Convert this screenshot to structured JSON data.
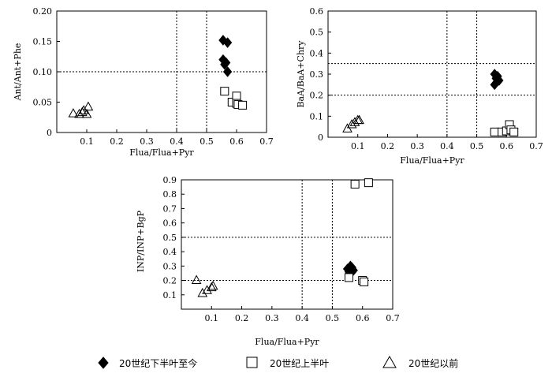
{
  "chart_data": [
    {
      "type": "scatter",
      "xlabel": "Flua/Flua+Pyr",
      "ylabel": "Ant/Ant+Phe",
      "xlim": [
        0,
        0.7
      ],
      "ylim": [
        0,
        0.2
      ],
      "xticks": [
        "0.1",
        "0.2",
        "0.3",
        "0.4",
        "0.5",
        "0.6",
        "0.7"
      ],
      "yticks": [
        "0.20",
        "0.15",
        "0.10",
        "0.05",
        "0"
      ],
      "vlines": [
        0.4,
        0.5
      ],
      "hlines": [
        0.1
      ],
      "series": [
        {
          "name": "20世纪下半叶至今",
          "marker": "diamond-filled",
          "x": [
            0.555,
            0.57,
            0.555,
            0.565,
            0.56,
            0.57
          ],
          "y": [
            0.152,
            0.148,
            0.12,
            0.115,
            0.112,
            0.1
          ]
        },
        {
          "name": "20世纪上半叶",
          "marker": "square-open",
          "x": [
            0.56,
            0.585,
            0.6,
            0.6,
            0.605,
            0.62
          ],
          "y": [
            0.068,
            0.05,
            0.06,
            0.048,
            0.046,
            0.045
          ]
        },
        {
          "name": "20世纪以前",
          "marker": "triangle-open",
          "x": [
            0.055,
            0.075,
            0.085,
            0.09,
            0.1,
            0.105
          ],
          "y": [
            0.031,
            0.03,
            0.033,
            0.036,
            0.03,
            0.042
          ]
        }
      ]
    },
    {
      "type": "scatter",
      "xlabel": "Flua/Flua+Pyr",
      "ylabel": "BaA/BaA+Chry",
      "xlim": [
        0,
        0.7
      ],
      "ylim": [
        0,
        0.6
      ],
      "xticks": [
        "0.1",
        "0.2",
        "0.3",
        "0.4",
        "0.5",
        "0.6",
        "0.7"
      ],
      "yticks": [
        "0.6",
        "0.5",
        "0.4",
        "0.3",
        "0.2",
        "0.1",
        "0"
      ],
      "vlines": [
        0.4,
        0.5
      ],
      "hlines": [
        0.35,
        0.2
      ],
      "series": [
        {
          "name": "20世纪下半叶至今",
          "marker": "diamond-filled",
          "x": [
            0.56,
            0.57,
            0.565,
            0.575,
            0.56
          ],
          "y": [
            0.3,
            0.29,
            0.28,
            0.27,
            0.25
          ]
        },
        {
          "name": "20世纪上半叶",
          "marker": "square-open",
          "x": [
            0.56,
            0.585,
            0.6,
            0.61,
            0.615,
            0.625
          ],
          "y": [
            0.025,
            0.025,
            0.03,
            0.06,
            0.035,
            0.025
          ]
        },
        {
          "name": "20世纪以前",
          "marker": "triangle-open",
          "x": [
            0.065,
            0.08,
            0.09,
            0.1,
            0.105
          ],
          "y": [
            0.04,
            0.06,
            0.07,
            0.08,
            0.08
          ]
        }
      ]
    },
    {
      "type": "scatter",
      "xlabel": "Flua/Flua+Pyr",
      "ylabel": "INP/INP+BgP",
      "xlim": [
        0,
        0.7
      ],
      "ylim": [
        0,
        0.9
      ],
      "xticks": [
        "0.1",
        "0.2",
        "0.3",
        "0.4",
        "0.5",
        "0.6",
        "0.7"
      ],
      "yticks": [
        "0.9",
        "0.8",
        "0.7",
        "0.6",
        "0.5",
        "0.4",
        "0.3",
        "0.2",
        "0.1"
      ],
      "vlines": [
        0.4,
        0.5
      ],
      "hlines": [
        0.5,
        0.2
      ],
      "series": [
        {
          "name": "20世纪下半叶至今",
          "marker": "diamond-filled",
          "x": [
            0.55,
            0.56,
            0.565,
            0.57,
            0.555,
            0.56
          ],
          "y": [
            0.28,
            0.3,
            0.29,
            0.27,
            0.26,
            0.25
          ]
        },
        {
          "name": "20世纪上半叶",
          "marker": "square-open",
          "x": [
            0.575,
            0.62,
            0.555,
            0.6,
            0.605
          ],
          "y": [
            0.87,
            0.88,
            0.22,
            0.2,
            0.19
          ]
        },
        {
          "name": "20世纪以前",
          "marker": "triangle-open",
          "x": [
            0.05,
            0.07,
            0.085,
            0.1,
            0.105
          ],
          "y": [
            0.2,
            0.11,
            0.13,
            0.15,
            0.16
          ]
        }
      ]
    }
  ],
  "legend": {
    "items": [
      {
        "label": "20世纪下半叶至今",
        "marker": "diamond-filled"
      },
      {
        "label": "20世纪上半叶",
        "marker": "square-open"
      },
      {
        "label": "20世纪以前",
        "marker": "triangle-open"
      }
    ]
  }
}
